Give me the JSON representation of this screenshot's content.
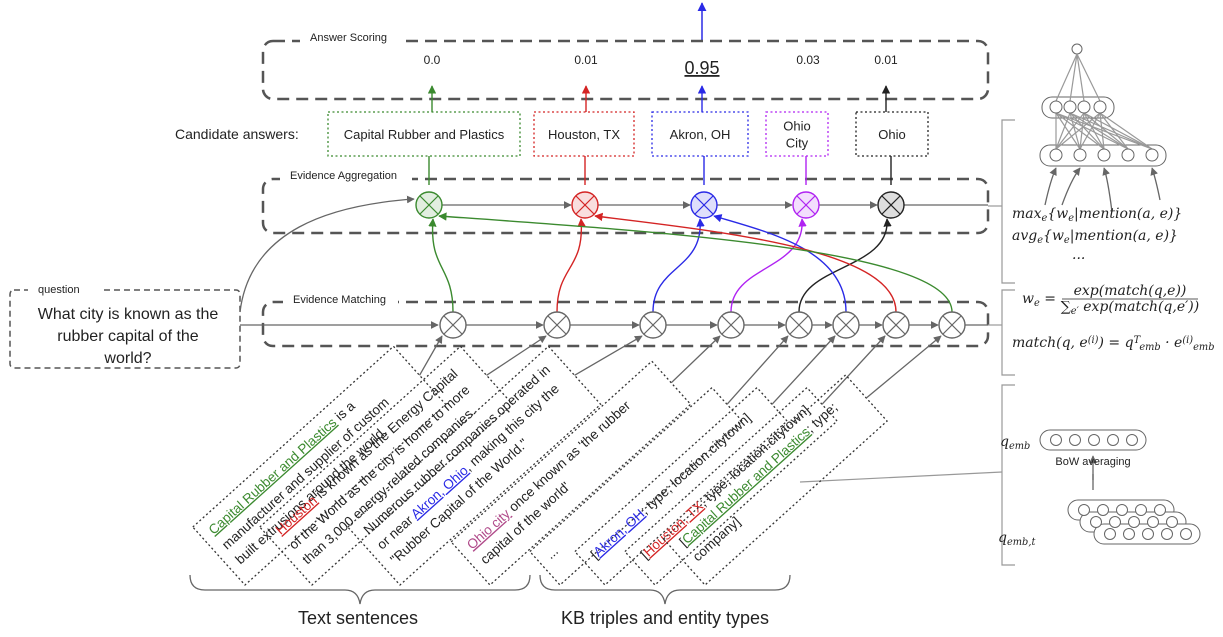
{
  "answer_scoring": {
    "label": "Answer Scoring",
    "scores": [
      {
        "value": 0,
        "label": "0.0"
      },
      0.01,
      0.95,
      0.03,
      0.01
    ]
  },
  "candidate_answers": {
    "label": "Candidate answers:",
    "items": [
      {
        "lines": [
          "Capital Rubber and Plastics"
        ],
        "color": "#3b8a2f"
      },
      {
        "lines": [
          "Houston, TX"
        ],
        "color": "#d42424"
      },
      {
        "lines": [
          "Akron, OH"
        ],
        "color": "#2a2ae6"
      },
      {
        "lines": [
          "Ohio",
          "City"
        ],
        "color": "#b023f2"
      },
      {
        "lines": [
          "Ohio"
        ],
        "color": "#222222"
      }
    ]
  },
  "evidence_aggregation": {
    "label": "Evidence Aggregation"
  },
  "evidence_matching": {
    "label": "Evidence Matching"
  },
  "question": {
    "label": "question",
    "lines": [
      "What city is known as the",
      "rubber capital of the",
      "world?"
    ]
  },
  "text_sentences": [
    {
      "lines": [
        [
          {
            "text": "Capital Rubber and Plastics",
            "color": "#3b8a2f"
          },
          {
            "text": " is a"
          }
        ],
        [
          {
            "text": "manufacturer and supplier of custom"
          }
        ],
        [
          {
            "text": "built extrusions around the world."
          }
        ]
      ]
    },
    {
      "lines": [
        [
          {
            "text": "Houston",
            "color": "#d42424"
          },
          {
            "text": " is known as the Energy Capital"
          }
        ],
        [
          {
            "text": "of the World as the city is home to more"
          }
        ],
        [
          {
            "text": "than 3,000 energy-related companies."
          }
        ]
      ]
    },
    {
      "lines": [
        [
          {
            "text": "Numerous rubber companies operated in"
          }
        ],
        [
          {
            "text": "or near "
          },
          {
            "text": "Akron, Ohio",
            "color": "#2a2ae6"
          },
          {
            "text": ", making this city the"
          }
        ],
        [
          {
            "text": "\"Rubber Capital of the World.\""
          }
        ]
      ]
    },
    {
      "lines": [
        [
          {
            "text": "Ohio city",
            "color": "#b04a8a"
          },
          {
            "text": " once known as 'the rubber"
          }
        ],
        [
          {
            "text": "capital of the world'"
          }
        ]
      ]
    }
  ],
  "kb_triples": [
    {
      "lines": [
        [
          {
            "text": "..."
          }
        ]
      ]
    },
    {
      "lines": [
        [
          {
            "text": "["
          },
          {
            "text": "Akron, OH",
            "color": "#2a2ae6"
          },
          {
            "text": "; type; location.citytown]"
          }
        ]
      ]
    },
    {
      "lines": [
        [
          {
            "text": "["
          },
          {
            "text": "Houston, TX",
            "color": "#d42424"
          },
          {
            "text": "; type; location.citytown]"
          }
        ]
      ]
    },
    {
      "lines": [
        [
          {
            "text": "["
          },
          {
            "text": "Capital Rubber and Plastics",
            "color": "#3b8a2f"
          },
          {
            "text": "; type;"
          }
        ],
        [
          {
            "text": "company]"
          }
        ]
      ]
    }
  ],
  "groups": {
    "text_sentences": "Text sentences",
    "kb": "KB triples and entity types"
  },
  "formulas": {
    "max": [
      {
        "text": "max"
      },
      {
        "text": "e",
        "shift": "sub"
      },
      {
        "text": "{w"
      },
      {
        "text": "e",
        "shift": "sub"
      },
      {
        "text": "|mention(a, e)}"
      }
    ],
    "avg": [
      {
        "text": "avg"
      },
      {
        "text": "e",
        "shift": "sub"
      },
      {
        "text": "{w"
      },
      {
        "text": "e",
        "shift": "sub"
      },
      {
        "text": "|mention(a, e)}"
      }
    ],
    "ellipsis": [
      {
        "text": "..."
      }
    ],
    "weight_lhs": [
      {
        "text": "w"
      },
      {
        "text": "e",
        "shift": "sub"
      },
      {
        "text": " ="
      }
    ],
    "weight_num": [
      {
        "text": "exp(match(q,e))"
      }
    ],
    "weight_den": [
      {
        "text": "∑"
      },
      {
        "text": "e′",
        "shift": "sub"
      },
      {
        "text": " exp(match(q,e′))"
      }
    ],
    "match": [
      {
        "text": "match(q, e"
      },
      {
        "text": "(i)",
        "shift": "sup"
      },
      {
        "text": ") = q"
      },
      {
        "text": "T",
        "shift": "sup"
      },
      {
        "text": "emb",
        "shift": "sub"
      },
      {
        "text": " · e"
      },
      {
        "text": "(i)",
        "shift": "sup"
      },
      {
        "text": "emb",
        "shift": "sub"
      }
    ],
    "q_emb": [
      {
        "text": "q"
      },
      {
        "text": "emb",
        "shift": "sub"
      }
    ],
    "q_emb_t": [
      {
        "text": "q"
      },
      {
        "text": "emb,t",
        "shift": "sub"
      }
    ],
    "bow": [
      {
        "text": "BoW averaging"
      }
    ]
  }
}
